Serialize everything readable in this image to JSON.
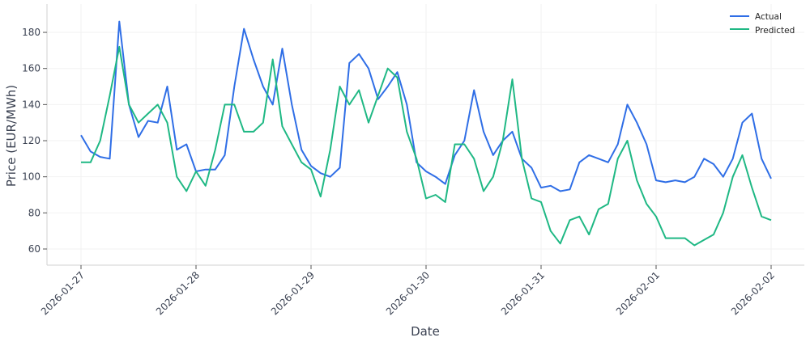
{
  "chart_data": {
    "type": "line",
    "title": "",
    "xlabel": "Date",
    "ylabel": "Price (EUR/MWh)",
    "x_start": "2026-01-27 00:00",
    "x_step_hours": 2,
    "xlim_days": [
      -0.3,
      6.3
    ],
    "ylim": [
      51,
      195
    ],
    "yticks": [
      60,
      80,
      100,
      120,
      140,
      160,
      180
    ],
    "xtick_labels": [
      "2026-01-27",
      "2026-01-28",
      "2026-01-29",
      "2026-01-30",
      "2026-01-31",
      "2026-02-01",
      "2026-02-02"
    ],
    "grid": true,
    "legend_position": "top-right",
    "series": [
      {
        "name": "Actual",
        "color": "#2f6ee6",
        "values": [
          123,
          114,
          111,
          110,
          186,
          140,
          122,
          131,
          130,
          150,
          115,
          118,
          103,
          104,
          104,
          112,
          150,
          182,
          165,
          150,
          140,
          171,
          140,
          115,
          106,
          102,
          100,
          105,
          163,
          168,
          160,
          143,
          150,
          158,
          140,
          108,
          103,
          100,
          96,
          112,
          120,
          148,
          125,
          112,
          120,
          125,
          110,
          105,
          94,
          95,
          92,
          93,
          108,
          112,
          110,
          108,
          118,
          140,
          130,
          118,
          98,
          97,
          98,
          97,
          100,
          110,
          107,
          100,
          110,
          130,
          135,
          110,
          99
        ]
      },
      {
        "name": "Predicted",
        "color": "#1fb884",
        "values": [
          108,
          108,
          120,
          145,
          172,
          140,
          130,
          135,
          140,
          130,
          100,
          92,
          103,
          95,
          115,
          140,
          140,
          125,
          125,
          130,
          165,
          128,
          118,
          108,
          104,
          89,
          115,
          150,
          140,
          148,
          130,
          145,
          160,
          155,
          125,
          110,
          88,
          90,
          86,
          118,
          118,
          110,
          92,
          100,
          120,
          154,
          110,
          88,
          86,
          70,
          63,
          76,
          78,
          68,
          82,
          85,
          110,
          120,
          98,
          85,
          78,
          66,
          66,
          66,
          62,
          65,
          68,
          80,
          100,
          112,
          94,
          78,
          76
        ]
      }
    ]
  }
}
